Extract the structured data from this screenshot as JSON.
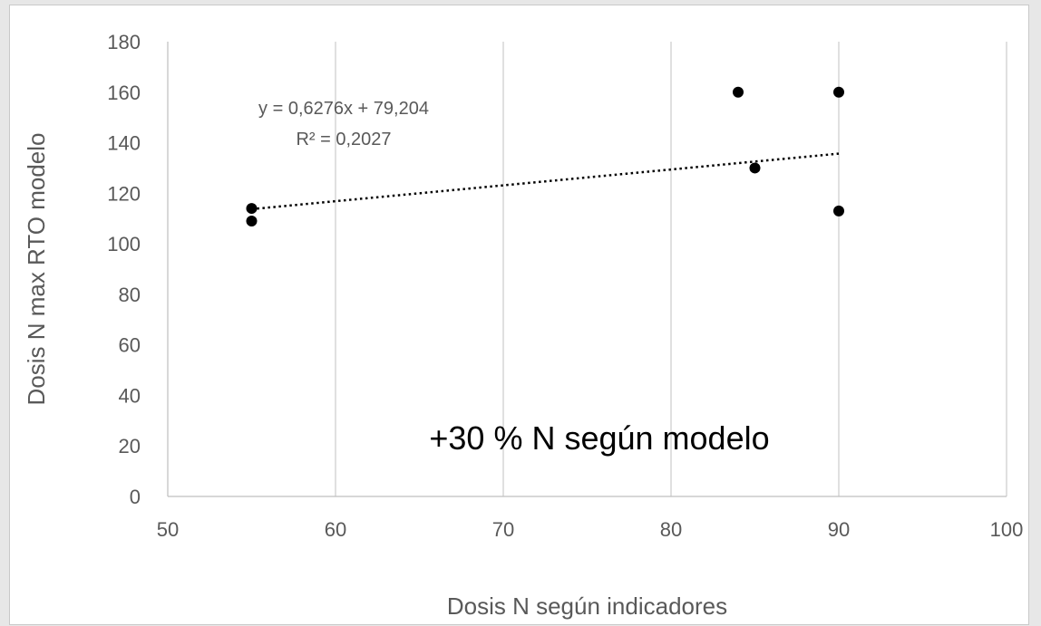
{
  "chart_data": {
    "type": "scatter",
    "title": "",
    "xlabel": "Dosis N según indicadores",
    "ylabel": "Dosis N max RTO modelo",
    "xlim": [
      50,
      100
    ],
    "ylim": [
      0,
      180
    ],
    "x_ticks": [
      "50",
      "60",
      "70",
      "80",
      "90",
      "100"
    ],
    "y_ticks": [
      "0",
      "20",
      "40",
      "60",
      "80",
      "100",
      "120",
      "140",
      "160",
      "180"
    ],
    "x_tick_values": [
      50,
      60,
      70,
      80,
      90,
      100
    ],
    "y_tick_values": [
      0,
      20,
      40,
      60,
      80,
      100,
      120,
      140,
      160,
      180
    ],
    "grid": "vertical",
    "legend": "none",
    "series": [
      {
        "points": [
          {
            "x": 55,
            "y": 114
          },
          {
            "x": 55,
            "y": 109
          },
          {
            "x": 84,
            "y": 160
          },
          {
            "x": 85,
            "y": 130
          },
          {
            "x": 90,
            "y": 160
          },
          {
            "x": 90,
            "y": 113
          }
        ],
        "color": "#000000"
      }
    ],
    "trendline": {
      "type": "linear",
      "slope": 0.6276,
      "intercept": 79.204,
      "x_range": [
        55,
        90
      ],
      "style": "dotted",
      "color": "#000000",
      "equation_label": "y = 0,6276x + 79,204",
      "r2_label": "R² = 0,2027"
    },
    "annotation": "+30 % N según modelo",
    "colors": {
      "grid": "#c0c0c0",
      "axis": "#bfbfbf",
      "text": "#595959",
      "marker": "#000000"
    }
  }
}
